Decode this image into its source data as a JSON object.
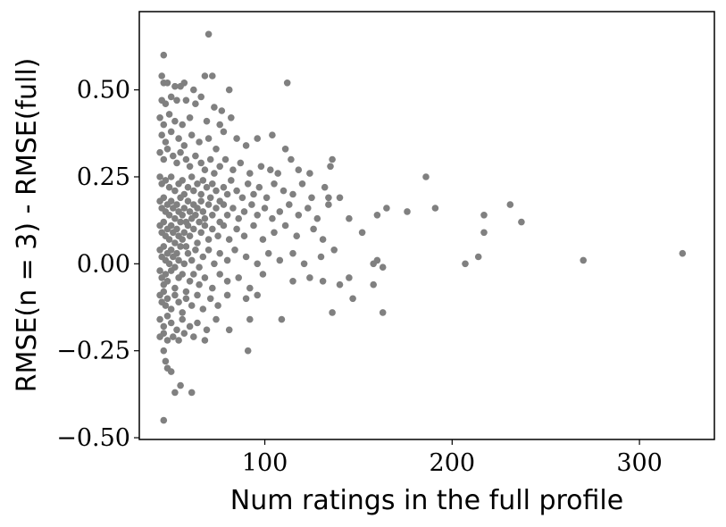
{
  "chart_data": {
    "type": "scatter",
    "title": "",
    "xlabel": "Num ratings in the full profile",
    "ylabel": "RMSE(n = 3) - RMSE(full)",
    "xlim": [
      33,
      340
    ],
    "ylim": [
      -0.505,
      0.725
    ],
    "xticks": [
      100,
      200,
      300
    ],
    "yticks": [
      -0.5,
      -0.25,
      0.0,
      0.25,
      0.5
    ],
    "xtick_labels": [
      "100",
      "200",
      "300"
    ],
    "ytick_labels": [
      "−0.50",
      "−0.25",
      "0.00",
      "0.25",
      "0.50"
    ],
    "grid": false,
    "legend": "none",
    "marker_color": "#808080",
    "series": [
      {
        "points": [
          [
            46,
            0.6
          ],
          [
            70,
            0.66
          ],
          [
            45,
            0.54
          ],
          [
            46,
            0.52
          ],
          [
            48,
            0.52
          ],
          [
            52,
            0.51
          ],
          [
            55,
            0.51
          ],
          [
            57,
            0.52
          ],
          [
            62,
            0.5
          ],
          [
            68,
            0.54
          ],
          [
            72,
            0.54
          ],
          [
            81,
            0.5
          ],
          [
            112,
            0.52
          ],
          [
            45,
            0.47
          ],
          [
            47,
            0.46
          ],
          [
            50,
            0.48
          ],
          [
            53,
            0.47
          ],
          [
            58,
            0.47
          ],
          [
            63,
            0.46
          ],
          [
            66,
            0.48
          ],
          [
            73,
            0.45
          ],
          [
            77,
            0.44
          ],
          [
            44,
            0.42
          ],
          [
            46,
            0.4
          ],
          [
            49,
            0.43
          ],
          [
            52,
            0.41
          ],
          [
            56,
            0.4
          ],
          [
            60,
            0.42
          ],
          [
            69,
            0.41
          ],
          [
            76,
            0.4
          ],
          [
            82,
            0.42
          ],
          [
            45,
            0.37
          ],
          [
            47,
            0.35
          ],
          [
            50,
            0.38
          ],
          [
            54,
            0.36
          ],
          [
            57,
            0.34
          ],
          [
            61,
            0.37
          ],
          [
            65,
            0.35
          ],
          [
            70,
            0.36
          ],
          [
            74,
            0.33
          ],
          [
            78,
            0.38
          ],
          [
            85,
            0.36
          ],
          [
            90,
            0.34
          ],
          [
            96,
            0.36
          ],
          [
            104,
            0.37
          ],
          [
            111,
            0.33
          ],
          [
            44,
            0.32
          ],
          [
            46,
            0.3
          ],
          [
            48,
            0.33
          ],
          [
            51,
            0.31
          ],
          [
            53,
            0.29
          ],
          [
            55,
            0.32
          ],
          [
            58,
            0.3
          ],
          [
            60,
            0.28
          ],
          [
            63,
            0.31
          ],
          [
            66,
            0.29
          ],
          [
            68,
            0.27
          ],
          [
            71,
            0.3
          ],
          [
            73,
            0.26
          ],
          [
            76,
            0.28
          ],
          [
            79,
            0.3
          ],
          [
            83,
            0.27
          ],
          [
            87,
            0.29
          ],
          [
            92,
            0.26
          ],
          [
            98,
            0.28
          ],
          [
            103,
            0.27
          ],
          [
            107,
            0.26
          ],
          [
            114,
            0.3
          ],
          [
            118,
            0.27
          ],
          [
            124,
            0.26
          ],
          [
            135,
            0.28
          ],
          [
            136,
            0.3
          ],
          [
            44,
            0.25
          ],
          [
            45,
            0.23
          ],
          [
            47,
            0.24
          ],
          [
            49,
            0.22
          ],
          [
            50,
            0.25
          ],
          [
            52,
            0.21
          ],
          [
            54,
            0.23
          ],
          [
            56,
            0.24
          ],
          [
            57,
            0.2
          ],
          [
            59,
            0.22
          ],
          [
            61,
            0.25
          ],
          [
            62,
            0.21
          ],
          [
            64,
            0.23
          ],
          [
            66,
            0.2
          ],
          [
            67,
            0.24
          ],
          [
            69,
            0.22
          ],
          [
            71,
            0.19
          ],
          [
            72,
            0.23
          ],
          [
            74,
            0.21
          ],
          [
            76,
            0.18
          ],
          [
            78,
            0.22
          ],
          [
            80,
            0.2
          ],
          [
            82,
            0.24
          ],
          [
            85,
            0.21
          ],
          [
            88,
            0.19
          ],
          [
            91,
            0.23
          ],
          [
            94,
            0.2
          ],
          [
            97,
            0.22
          ],
          [
            101,
            0.19
          ],
          [
            105,
            0.23
          ],
          [
            110,
            0.21
          ],
          [
            115,
            0.2
          ],
          [
            120,
            0.23
          ],
          [
            125,
            0.19
          ],
          [
            132,
            0.22
          ],
          [
            134,
            0.19
          ],
          [
            140,
            0.19
          ],
          [
            186,
            0.25
          ],
          [
            44,
            0.18
          ],
          [
            45,
            0.16
          ],
          [
            46,
            0.19
          ],
          [
            47,
            0.15
          ],
          [
            48,
            0.17
          ],
          [
            49,
            0.14
          ],
          [
            50,
            0.18
          ],
          [
            51,
            0.16
          ],
          [
            52,
            0.13
          ],
          [
            53,
            0.17
          ],
          [
            54,
            0.15
          ],
          [
            55,
            0.19
          ],
          [
            56,
            0.14
          ],
          [
            57,
            0.16
          ],
          [
            58,
            0.12
          ],
          [
            59,
            0.18
          ],
          [
            60,
            0.15
          ],
          [
            61,
            0.13
          ],
          [
            62,
            0.17
          ],
          [
            63,
            0.14
          ],
          [
            64,
            0.16
          ],
          [
            65,
            0.12
          ],
          [
            66,
            0.18
          ],
          [
            67,
            0.15
          ],
          [
            68,
            0.13
          ],
          [
            70,
            0.17
          ],
          [
            72,
            0.14
          ],
          [
            74,
            0.16
          ],
          [
            76,
            0.12
          ],
          [
            78,
            0.17
          ],
          [
            80,
            0.14
          ],
          [
            83,
            0.16
          ],
          [
            86,
            0.13
          ],
          [
            89,
            0.15
          ],
          [
            93,
            0.17
          ],
          [
            96,
            0.14
          ],
          [
            100,
            0.16
          ],
          [
            104,
            0.13
          ],
          [
            108,
            0.15
          ],
          [
            113,
            0.17
          ],
          [
            118,
            0.14
          ],
          [
            123,
            0.16
          ],
          [
            128,
            0.13
          ],
          [
            134,
            0.17
          ],
          [
            145,
            0.13
          ],
          [
            160,
            0.14
          ],
          [
            165,
            0.16
          ],
          [
            176,
            0.15
          ],
          [
            191,
            0.16
          ],
          [
            217,
            0.14
          ],
          [
            231,
            0.17
          ],
          [
            237,
            0.12
          ],
          [
            44,
            0.11
          ],
          [
            45,
            0.09
          ],
          [
            46,
            0.12
          ],
          [
            47,
            0.08
          ],
          [
            48,
            0.1
          ],
          [
            49,
            0.07
          ],
          [
            50,
            0.11
          ],
          [
            51,
            0.09
          ],
          [
            52,
            0.06
          ],
          [
            53,
            0.1
          ],
          [
            54,
            0.08
          ],
          [
            55,
            0.12
          ],
          [
            56,
            0.07
          ],
          [
            57,
            0.09
          ],
          [
            58,
            0.05
          ],
          [
            59,
            0.11
          ],
          [
            60,
            0.08
          ],
          [
            62,
            0.1
          ],
          [
            64,
            0.06
          ],
          [
            66,
            0.09
          ],
          [
            68,
            0.11
          ],
          [
            70,
            0.07
          ],
          [
            72,
            0.1
          ],
          [
            75,
            0.08
          ],
          [
            78,
            0.11
          ],
          [
            81,
            0.07
          ],
          [
            85,
            0.1
          ],
          [
            89,
            0.08
          ],
          [
            94,
            0.11
          ],
          [
            99,
            0.07
          ],
          [
            105,
            0.09
          ],
          [
            111,
            0.11
          ],
          [
            117,
            0.08
          ],
          [
            126,
            0.1
          ],
          [
            131,
            0.07
          ],
          [
            152,
            0.09
          ],
          [
            217,
            0.09
          ],
          [
            44,
            0.04
          ],
          [
            45,
            0.02
          ],
          [
            46,
            0.05
          ],
          [
            47,
            0.01
          ],
          [
            48,
            0.03
          ],
          [
            49,
            0.0
          ],
          [
            50,
            0.04
          ],
          [
            51,
            0.02
          ],
          [
            52,
            -0.01
          ],
          [
            53,
            0.03
          ],
          [
            54,
            0.01
          ],
          [
            55,
            0.05
          ],
          [
            57,
            0.0
          ],
          [
            59,
            0.03
          ],
          [
            61,
            0.01
          ],
          [
            63,
            0.04
          ],
          [
            65,
            -0.01
          ],
          [
            67,
            0.02
          ],
          [
            70,
            0.04
          ],
          [
            73,
            0.0
          ],
          [
            76,
            0.03
          ],
          [
            80,
            0.01
          ],
          [
            84,
            0.04
          ],
          [
            90,
            0.02
          ],
          [
            96,
            0.0
          ],
          [
            102,
            0.03
          ],
          [
            108,
            0.01
          ],
          [
            115,
            0.03
          ],
          [
            121,
            0.0
          ],
          [
            130,
            0.02
          ],
          [
            137,
            0.04
          ],
          [
            158,
            0.0
          ],
          [
            160,
            0.01
          ],
          [
            163,
            -0.01
          ],
          [
            207,
            0.0
          ],
          [
            214,
            0.02
          ],
          [
            270,
            0.01
          ],
          [
            323,
            0.03
          ],
          [
            44,
            -0.02
          ],
          [
            45,
            -0.04
          ],
          [
            46,
            -0.06
          ],
          [
            47,
            -0.03
          ],
          [
            48,
            -0.05
          ],
          [
            50,
            -0.02
          ],
          [
            52,
            -0.07
          ],
          [
            54,
            -0.04
          ],
          [
            56,
            -0.03
          ],
          [
            58,
            -0.08
          ],
          [
            60,
            -0.05
          ],
          [
            62,
            -0.03
          ],
          [
            65,
            -0.06
          ],
          [
            68,
            -0.04
          ],
          [
            72,
            -0.07
          ],
          [
            76,
            -0.03
          ],
          [
            80,
            -0.05
          ],
          [
            86,
            -0.04
          ],
          [
            92,
            -0.07
          ],
          [
            99,
            -0.03
          ],
          [
            115,
            -0.05
          ],
          [
            124,
            -0.04
          ],
          [
            131,
            -0.05
          ],
          [
            140,
            -0.06
          ],
          [
            145,
            -0.04
          ],
          [
            158,
            -0.06
          ],
          [
            44,
            -0.09
          ],
          [
            45,
            -0.11
          ],
          [
            46,
            -0.08
          ],
          [
            47,
            -0.12
          ],
          [
            48,
            -0.1
          ],
          [
            50,
            -0.13
          ],
          [
            52,
            -0.09
          ],
          [
            54,
            -0.11
          ],
          [
            56,
            -0.14
          ],
          [
            58,
            -0.1
          ],
          [
            61,
            -0.12
          ],
          [
            64,
            -0.09
          ],
          [
            67,
            -0.13
          ],
          [
            71,
            -0.1
          ],
          [
            75,
            -0.12
          ],
          [
            80,
            -0.09
          ],
          [
            90,
            -0.1
          ],
          [
            96,
            -0.09
          ],
          [
            136,
            -0.14
          ],
          [
            147,
            -0.1
          ],
          [
            163,
            -0.14
          ],
          [
            44,
            -0.16
          ],
          [
            46,
            -0.18
          ],
          [
            48,
            -0.15
          ],
          [
            50,
            -0.17
          ],
          [
            53,
            -0.19
          ],
          [
            56,
            -0.16
          ],
          [
            60,
            -0.18
          ],
          [
            64,
            -0.17
          ],
          [
            69,
            -0.19
          ],
          [
            74,
            -0.16
          ],
          [
            81,
            -0.19
          ],
          [
            92,
            -0.16
          ],
          [
            109,
            -0.16
          ],
          [
            44,
            -0.21
          ],
          [
            46,
            -0.2
          ],
          [
            48,
            -0.22
          ],
          [
            51,
            -0.21
          ],
          [
            54,
            -0.22
          ],
          [
            57,
            -0.2
          ],
          [
            62,
            -0.21
          ],
          [
            68,
            -0.22
          ],
          [
            91,
            -0.25
          ],
          [
            46,
            -0.25
          ],
          [
            47,
            -0.28
          ],
          [
            48,
            -0.3
          ],
          [
            50,
            -0.31
          ],
          [
            46,
            -0.45
          ],
          [
            52,
            -0.37
          ],
          [
            55,
            -0.35
          ],
          [
            61,
            -0.37
          ]
        ]
      }
    ]
  }
}
